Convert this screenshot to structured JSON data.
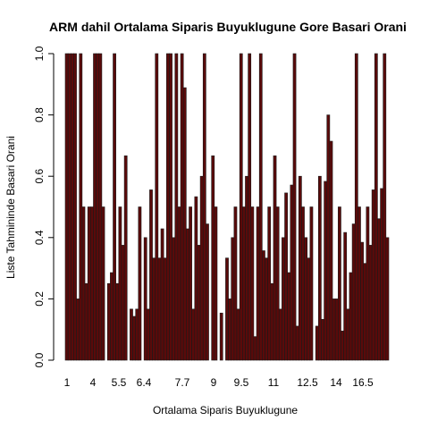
{
  "chart_data": {
    "type": "bar",
    "title": "ARM dahil Ortalama Siparis Buyuklugune Gore Basari Orani",
    "xlabel": "Ortalama Siparis Buyuklugune",
    "ylabel": "Liste Tahmininde Basari Orani",
    "ylim": [
      0,
      1
    ],
    "yticks": [
      "0.0",
      "0.2",
      "0.4",
      "0.6",
      "0.8",
      "1.0"
    ],
    "xtick_labels": [
      "1",
      "4",
      "5.5",
      "6.4",
      "7.7",
      "9",
      "9.5",
      "11",
      "12.5",
      "14",
      "16.5"
    ],
    "values": [
      1.0,
      1.0,
      1.0,
      1.0,
      0.2,
      1.0,
      0.5,
      0.25,
      0.5,
      0.5,
      1.0,
      1.0,
      1.0,
      0.5,
      0.0,
      0.25,
      0.2857,
      1.0,
      0.25,
      0.5,
      0.375,
      0.6667,
      0.0,
      0.1667,
      0.1429,
      0.1667,
      0.5,
      0.0,
      0.4,
      0.1667,
      0.5556,
      0.3333,
      1.0,
      0.3333,
      0.4286,
      0.3333,
      1.0,
      1.0,
      0.4,
      1.0,
      0.5,
      1.0,
      0.8889,
      0.4286,
      0.5,
      0.1667,
      0.5333,
      0.375,
      0.6,
      1.0,
      0.4444,
      0.0,
      0.6667,
      0.5,
      0.0,
      0.1538,
      0.0,
      0.3333,
      0.2,
      0.4,
      0.5,
      0.1667,
      1.0,
      0.5,
      0.6,
      1.0,
      0.5,
      0.0769,
      0.5,
      1.0,
      0.3571,
      0.3333,
      0.5,
      0.25,
      0.6667,
      0.5,
      0.1667,
      0.4,
      0.5455,
      0.2857,
      0.5714,
      1.0,
      0.1111,
      0.6,
      0.5,
      0.4,
      0.3333,
      0.5,
      0.0,
      0.1111,
      0.6,
      0.1333,
      0.5833,
      0.8,
      0.7143,
      0.2,
      0.2,
      0.5,
      0.0952,
      0.4167,
      0.1667,
      0.2857,
      0.4444,
      1.0,
      0.5,
      0.3846,
      0.3158,
      0.5,
      0.375,
      0.5556,
      1.0,
      0.4615,
      0.56,
      1.0,
      0.4
    ]
  }
}
